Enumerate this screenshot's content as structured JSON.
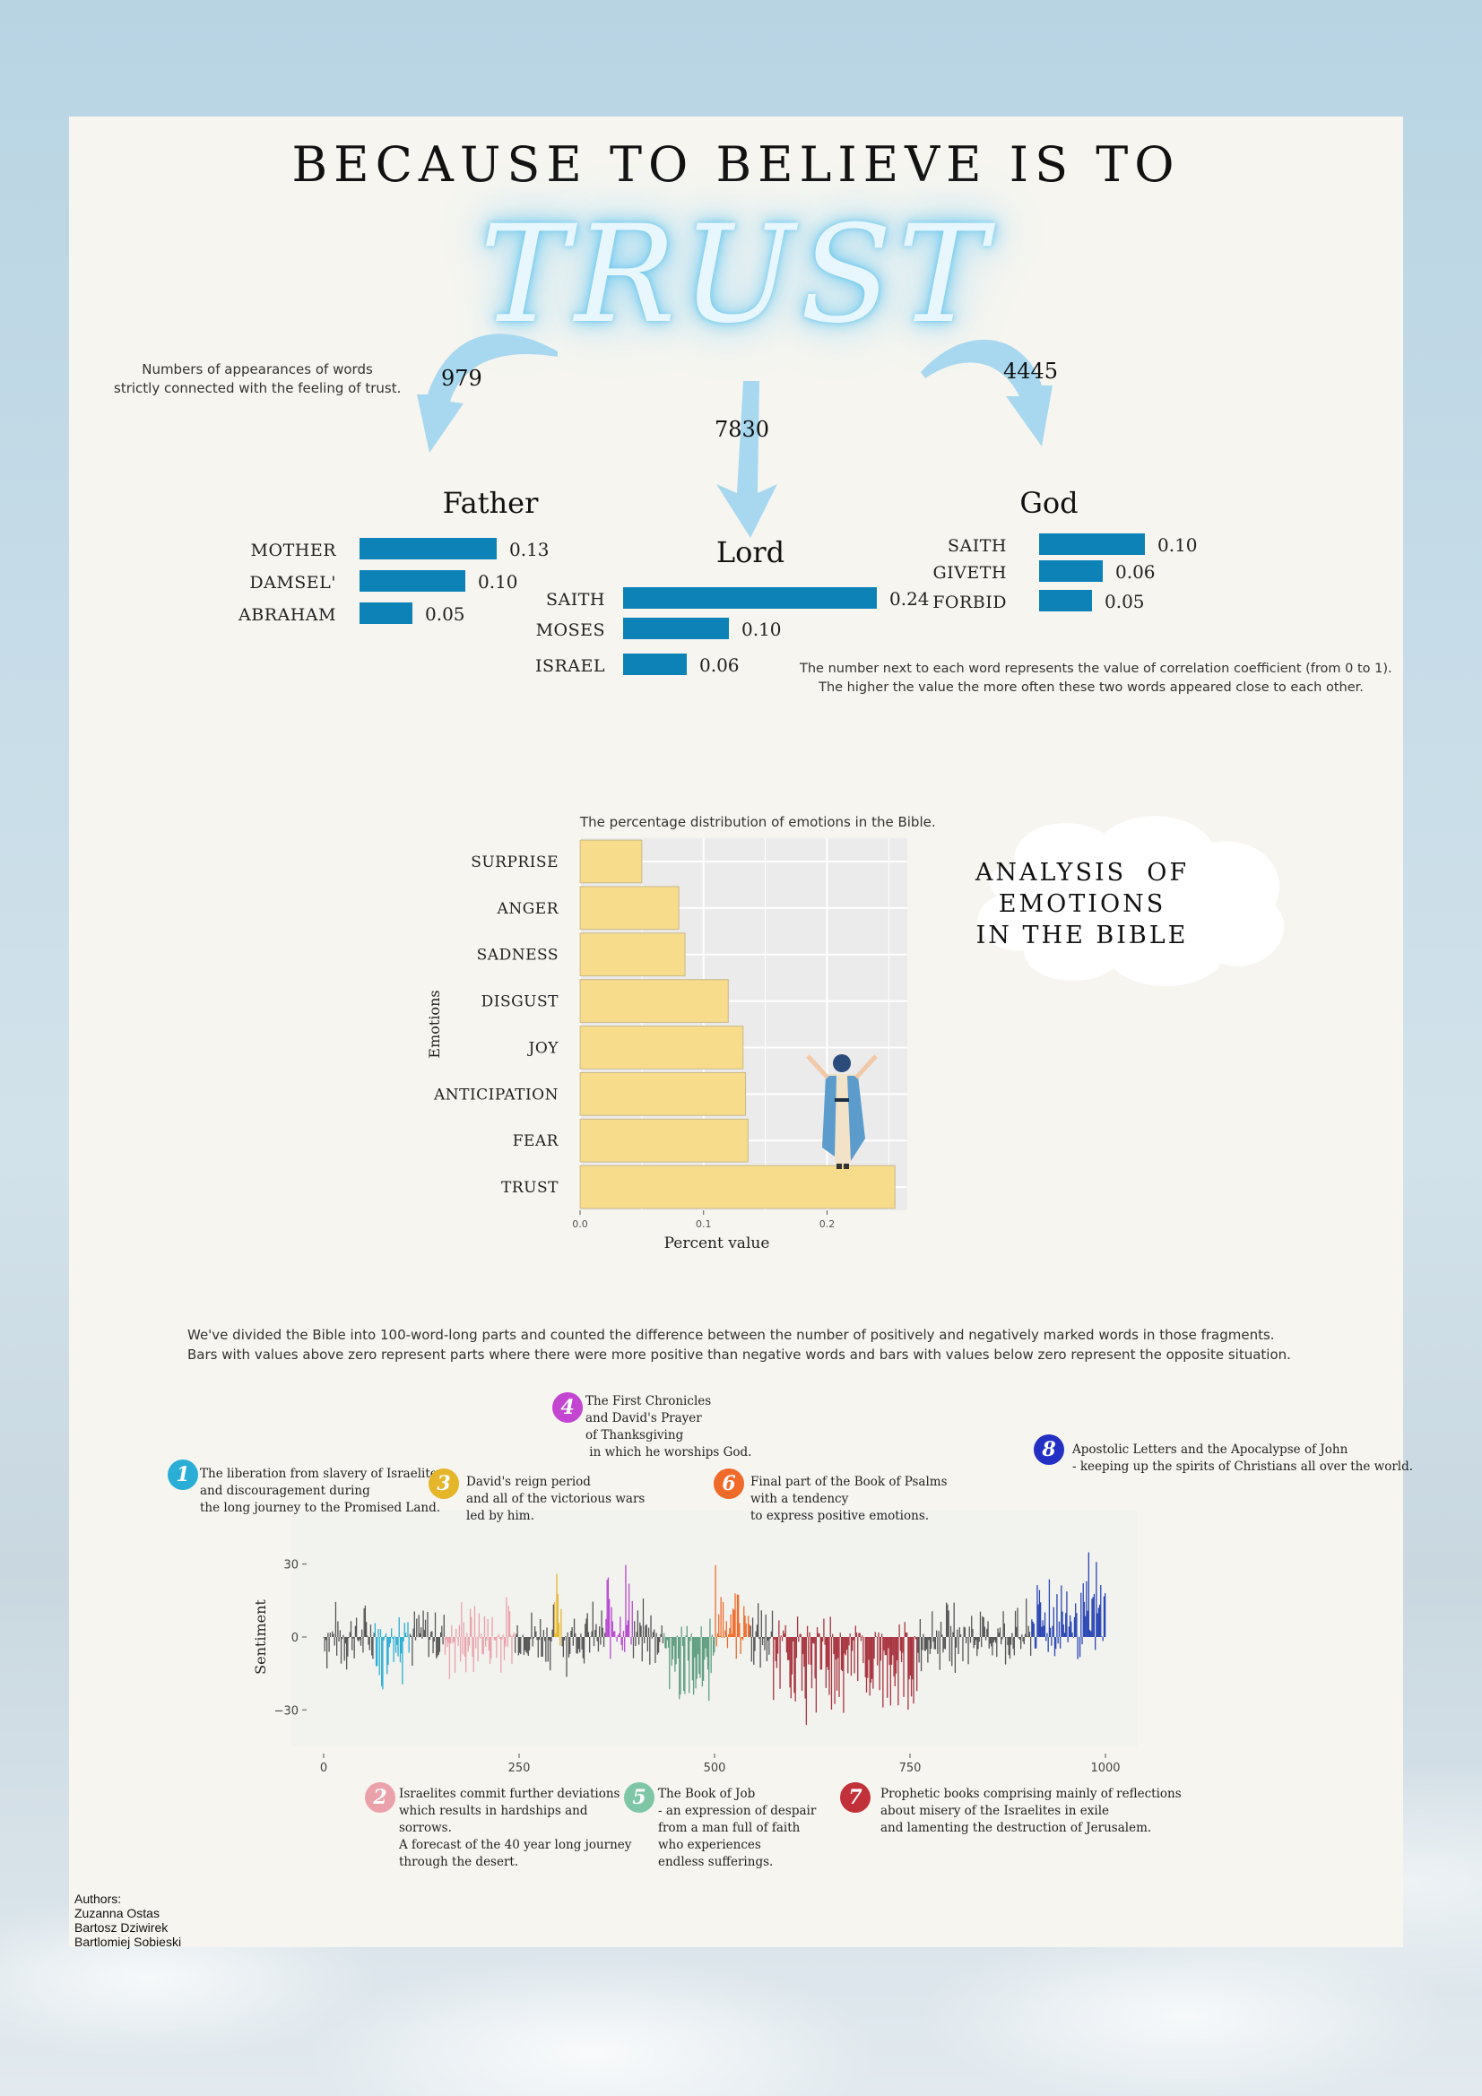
{
  "header": {
    "title": "BECAUSE TO BELIEVE IS TO",
    "highlight": "TRUST"
  },
  "appearances_note": "Numbers of appearances of words\nstrictly connected with the feeling of trust.",
  "correlation_note": "The number next to each word represents the value of correlation coefficient (from 0 to 1).\nThe higher the value the more often these two words appeared close to each other.",
  "groups": [
    {
      "name": "Father",
      "count": "979",
      "words": [
        {
          "word": "MOTHER",
          "value": 0.13,
          "label": "0.13"
        },
        {
          "word": "DAMSEL'",
          "value": 0.1,
          "label": "0.10"
        },
        {
          "word": "ABRAHAM",
          "value": 0.05,
          "label": "0.05"
        }
      ]
    },
    {
      "name": "Lord",
      "count": "7830",
      "words": [
        {
          "word": "SAITH",
          "value": 0.24,
          "label": "0.24"
        },
        {
          "word": "MOSES",
          "value": 0.1,
          "label": "0.10"
        },
        {
          "word": "ISRAEL",
          "value": 0.06,
          "label": "0.06"
        }
      ]
    },
    {
      "name": "God",
      "count": "4445",
      "words": [
        {
          "word": "SAITH",
          "value": 0.1,
          "label": "0.10"
        },
        {
          "word": "GIVETH",
          "value": 0.06,
          "label": "0.06"
        },
        {
          "word": "FORBID",
          "value": 0.05,
          "label": "0.05"
        }
      ]
    }
  ],
  "emotions_section": {
    "title": "ANALYSIS  OF\nEMOTIONS\nIN THE BIBLE"
  },
  "sentiment_intro": "We've divided the Bible into 100-word-long parts and counted the difference between the number of positively and negatively marked words in those fragments.\nBars with values above zero represent parts where there were more positive than negative words and bars with values below zero represent the opposite situation.",
  "callouts": [
    {
      "num": "1",
      "color": "#2aaed6",
      "text": "The liberation from slavery of Israelites\nand discouragement during\nthe long journey to the Promised Land."
    },
    {
      "num": "2",
      "color": "#eaa1aa",
      "text": "Israelites commit further deviations\nwhich results in hardships and\nsorrows.\nA forecast of the 40 year long journey\nthrough the desert."
    },
    {
      "num": "3",
      "color": "#e5b52a",
      "text": "David's reign period\nand all of the victorious wars\nled by him."
    },
    {
      "num": "4",
      "color": "#c246d0",
      "text": "The First Chronicles\nand David's Prayer\nof Thanksgiving\n in which he worships God."
    },
    {
      "num": "5",
      "color": "#7fc6a7",
      "text": "The Book of Job\n- an expression of despair\nfrom a man full of faith\nwho experiences\nendless sufferings."
    },
    {
      "num": "6",
      "color": "#f06a2a",
      "text": "Final part of the Book of Psalms\nwith a tendency\nto express positive emotions."
    },
    {
      "num": "7",
      "color": "#c2303a",
      "text": "Prophetic books comprising mainly of reflections\nabout misery of the Israelites in exile\nand lamenting the destruction of Jerusalem."
    },
    {
      "num": "8",
      "color": "#2430c4",
      "text": "Apostolic Letters and the Apocalypse of John\n- keeping up the spirits of Christians all over the world."
    }
  ],
  "authors": "Authors:\nZuzanna Ostas\nBartosz Dziwirek\nBartlomiej Sobieski",
  "colors": {
    "word_bar": "#0c82b7",
    "emotion_bar": "#f7dc8c",
    "arrow": "#a8d8ef",
    "yellow_arrow": "#e4c02e"
  },
  "chart_data": [
    {
      "type": "bar",
      "orientation": "horizontal",
      "title": "The percentage distribution of emotions in the Bible.",
      "xlabel": "Percent value",
      "ylabel": "Emotions",
      "categories": [
        "SURPRISE",
        "ANGER",
        "SADNESS",
        "DISGUST",
        "JOY",
        "ANTICIPATION",
        "FEAR",
        "TRUST"
      ],
      "values": [
        0.05,
        0.08,
        0.085,
        0.12,
        0.132,
        0.134,
        0.136,
        0.255
      ],
      "xlim": [
        0,
        0.265
      ],
      "xticks": [
        0.0,
        0.1,
        0.2
      ],
      "xtick_labels": [
        "0.0",
        "0.1",
        "0.2"
      ],
      "grid": true
    },
    {
      "type": "bar",
      "title": "",
      "xlabel": "",
      "ylabel": "Sentiment",
      "xlim": [
        0,
        1000
      ],
      "ylim": [
        -45,
        52
      ],
      "xticks": [
        0,
        250,
        500,
        750,
        1000
      ],
      "xtick_labels": [
        "0",
        "250",
        "500",
        "750",
        "1000"
      ],
      "yticks": [
        30,
        0,
        -30
      ],
      "ytick_labels": [
        "30",
        "0",
        "−30"
      ],
      "segments": [
        {
          "part": "1",
          "start": 65,
          "end": 110,
          "color": "#2aaed6",
          "sign": "neg"
        },
        {
          "part": "2",
          "start": 155,
          "end": 245,
          "color": "#eaa1aa",
          "sign": "mix"
        },
        {
          "part": "3",
          "start": 295,
          "end": 305,
          "color": "#e5b52a",
          "sign": "pos"
        },
        {
          "part": "4",
          "start": 360,
          "end": 395,
          "color": "#b64ad0",
          "sign": "pos"
        },
        {
          "part": "5",
          "start": 435,
          "end": 500,
          "color": "#5f9e80",
          "sign": "neg"
        },
        {
          "part": "6",
          "start": 500,
          "end": 545,
          "color": "#f06a2a",
          "sign": "pos"
        },
        {
          "part": "7",
          "start": 575,
          "end": 760,
          "color": "#a8343f",
          "sign": "neg"
        },
        {
          "part": "8",
          "start": 905,
          "end": 1000,
          "color": "#2a46b5",
          "sign": "pos"
        }
      ]
    }
  ]
}
